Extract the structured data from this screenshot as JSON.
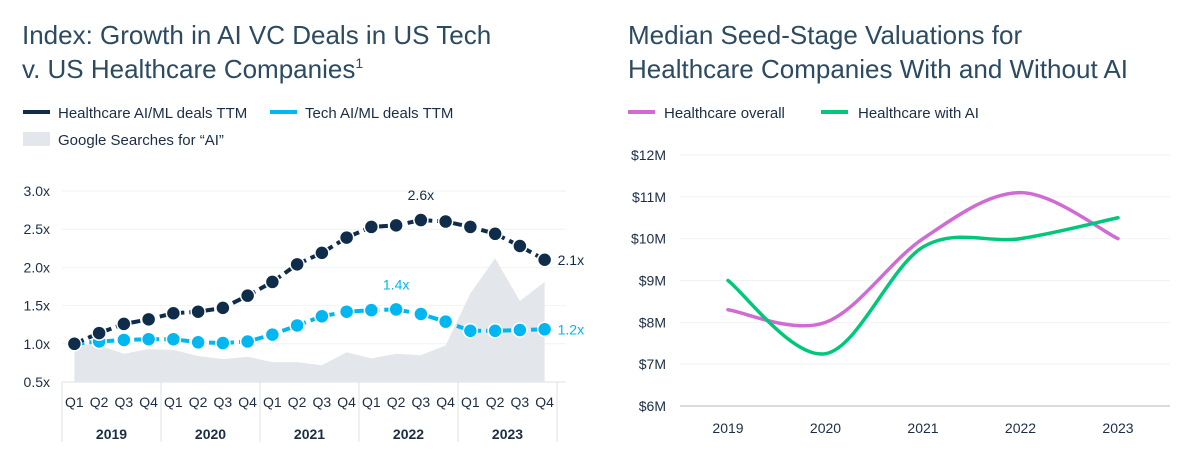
{
  "chart_data": [
    {
      "type": "line",
      "title_line1": "Index: Growth in AI VC Deals in US Tech",
      "title_line2": "v. US Healthcare Companies",
      "title_footnote": "1",
      "ylim": [
        0.5,
        3.0
      ],
      "yticks": [
        "0.5x",
        "1.0x",
        "1.5x",
        "2.0x",
        "2.5x",
        "3.0x"
      ],
      "grid": true,
      "legend": "top",
      "quarters": [
        "Q1",
        "Q2",
        "Q3",
        "Q4"
      ],
      "years": [
        "2019",
        "2020",
        "2021",
        "2022",
        "2023"
      ],
      "series": [
        {
          "name": "Healthcare AI/ML deals TTM",
          "color": "#0f2d4a",
          "values": [
            1.0,
            1.14,
            1.26,
            1.32,
            1.4,
            1.42,
            1.47,
            1.63,
            1.81,
            2.04,
            2.19,
            2.39,
            2.53,
            2.55,
            2.62,
            2.6,
            2.53,
            2.44,
            2.28,
            2.1
          ]
        },
        {
          "name": "Tech AI/ML deals TTM",
          "color": "#00b7f1",
          "values": [
            1.0,
            1.03,
            1.05,
            1.06,
            1.06,
            1.02,
            1.01,
            1.03,
            1.12,
            1.24,
            1.36,
            1.42,
            1.44,
            1.45,
            1.39,
            1.29,
            1.17,
            1.17,
            1.18,
            1.19
          ]
        },
        {
          "name": "Google Searches for “AI”",
          "color": "#e3e7eb",
          "type": "area",
          "values": [
            1.0,
            0.98,
            0.87,
            0.93,
            0.92,
            0.84,
            0.8,
            0.83,
            0.76,
            0.76,
            0.72,
            0.89,
            0.81,
            0.87,
            0.85,
            0.98,
            1.66,
            2.12,
            1.56,
            1.81
          ]
        }
      ],
      "annotations": [
        {
          "text": "2.6x",
          "series": 0,
          "index": 14
        },
        {
          "text": "2.1x",
          "series": 0,
          "index": 19
        },
        {
          "text": "1.4x",
          "series": 1,
          "index": 13
        },
        {
          "text": "1.2x",
          "series": 1,
          "index": 19
        }
      ]
    },
    {
      "type": "line",
      "title_line1": "Median Seed-Stage Valuations for",
      "title_line2": "Healthcare Companies With and Without AI",
      "categories": [
        "2019",
        "2020",
        "2021",
        "2022",
        "2023"
      ],
      "ylim": [
        6,
        12
      ],
      "yticks": [
        "$6M",
        "$7M",
        "$8M",
        "$9M",
        "$10M",
        "$11M",
        "$12M"
      ],
      "grid": true,
      "legend": "top",
      "series": [
        {
          "name": "Healthcare overall",
          "color": "#d16bd4",
          "values": [
            8.3,
            8.0,
            10.0,
            11.1,
            10.0
          ]
        },
        {
          "name": "Healthcare with AI",
          "color": "#00c77a",
          "values": [
            9.0,
            7.25,
            9.8,
            10.0,
            10.5
          ]
        }
      ]
    }
  ]
}
